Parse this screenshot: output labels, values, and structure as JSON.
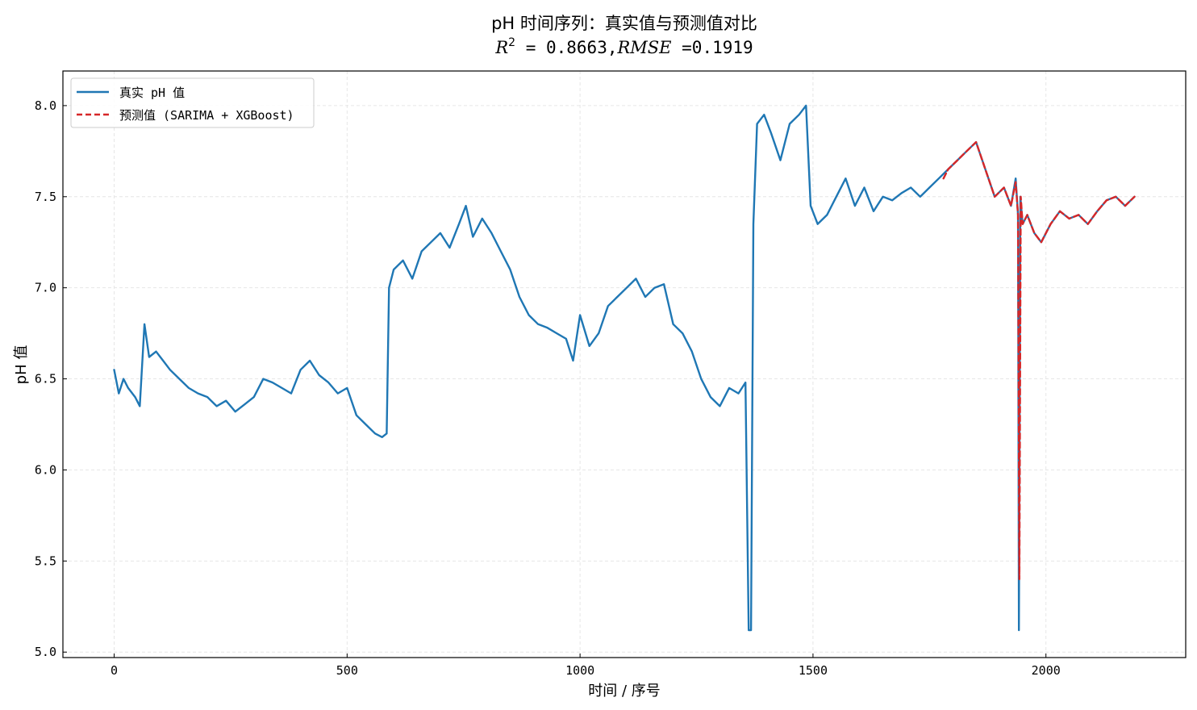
{
  "chart_data": {
    "type": "line",
    "title": "pH 时间序列：真实值与预测值对比",
    "subtitle": "R² = 0.8663,RMSE =0.1919",
    "subtitle_math": {
      "r2_label": "R",
      "r2_exp": "2",
      "r2_value": " = 0.8663,",
      "rmse_label": "RMSE",
      "rmse_value": " =0.1919"
    },
    "xlabel": "时间 / 序号",
    "ylabel": "pH 值",
    "xlim": [
      -110,
      2300
    ],
    "ylim": [
      4.97,
      8.19
    ],
    "xticks": [
      0,
      500,
      1000,
      1500,
      2000
    ],
    "yticks": [
      5.0,
      5.5,
      6.0,
      6.5,
      7.0,
      7.5,
      8.0
    ],
    "ytick_labels": [
      "5.0",
      "5.5",
      "6.0",
      "6.5",
      "7.0",
      "7.5",
      "8.0"
    ],
    "grid": true,
    "legend_position": "top-left",
    "series": [
      {
        "name": "真实 pH 值",
        "color": "#1f77b4",
        "style": "solid",
        "x": [
          0,
          10,
          20,
          30,
          45,
          55,
          65,
          75,
          90,
          105,
          120,
          140,
          160,
          180,
          200,
          220,
          240,
          260,
          280,
          300,
          320,
          340,
          360,
          380,
          400,
          420,
          440,
          460,
          480,
          500,
          520,
          540,
          560,
          575,
          585,
          590,
          600,
          620,
          640,
          660,
          680,
          700,
          720,
          740,
          755,
          770,
          790,
          810,
          830,
          850,
          870,
          890,
          910,
          930,
          950,
          970,
          985,
          1000,
          1020,
          1040,
          1060,
          1080,
          1100,
          1120,
          1140,
          1160,
          1180,
          1200,
          1220,
          1240,
          1260,
          1280,
          1300,
          1320,
          1340,
          1355,
          1362,
          1367,
          1372,
          1380,
          1395,
          1410,
          1430,
          1450,
          1470,
          1485,
          1495,
          1510,
          1530,
          1550,
          1570,
          1590,
          1610,
          1630,
          1650,
          1670,
          1690,
          1710,
          1730,
          1750,
          1770,
          1790,
          1810,
          1830,
          1850,
          1870,
          1890,
          1910,
          1925,
          1935,
          1940,
          1942,
          1945,
          1950,
          1960,
          1975,
          1990,
          2010,
          2030,
          2050,
          2070,
          2090,
          2110,
          2130,
          2150,
          2170,
          2190
        ],
        "y": [
          6.55,
          6.42,
          6.5,
          6.45,
          6.4,
          6.35,
          6.8,
          6.62,
          6.65,
          6.6,
          6.55,
          6.5,
          6.45,
          6.42,
          6.4,
          6.35,
          6.38,
          6.32,
          6.36,
          6.4,
          6.5,
          6.48,
          6.45,
          6.42,
          6.55,
          6.6,
          6.52,
          6.48,
          6.42,
          6.45,
          6.3,
          6.25,
          6.2,
          6.18,
          6.2,
          7.0,
          7.1,
          7.15,
          7.05,
          7.2,
          7.25,
          7.3,
          7.22,
          7.35,
          7.45,
          7.28,
          7.38,
          7.3,
          7.2,
          7.1,
          6.95,
          6.85,
          6.8,
          6.78,
          6.75,
          6.72,
          6.6,
          6.85,
          6.68,
          6.75,
          6.9,
          6.95,
          7.0,
          7.05,
          6.95,
          7.0,
          7.02,
          6.8,
          6.75,
          6.65,
          6.5,
          6.4,
          6.35,
          6.45,
          6.42,
          6.48,
          5.12,
          5.12,
          7.35,
          7.9,
          7.95,
          7.85,
          7.7,
          7.9,
          7.95,
          8.0,
          7.45,
          7.35,
          7.4,
          7.5,
          7.6,
          7.45,
          7.55,
          7.42,
          7.5,
          7.48,
          7.52,
          7.55,
          7.5,
          7.55,
          7.6,
          7.65,
          7.7,
          7.75,
          7.8,
          7.65,
          7.5,
          7.55,
          7.45,
          7.6,
          7.4,
          5.12,
          7.5,
          7.35,
          7.4,
          7.3,
          7.25,
          7.35,
          7.42,
          7.38,
          7.4,
          7.35,
          7.42,
          7.48,
          7.5,
          7.45,
          7.5
        ]
      },
      {
        "name": "预测值 (SARIMA + XGBoost)",
        "color": "#d62728",
        "style": "dashed",
        "x": [
          1780,
          1790,
          1810,
          1830,
          1850,
          1870,
          1890,
          1910,
          1925,
          1935,
          1940,
          1943,
          1946,
          1950,
          1960,
          1975,
          1990,
          2010,
          2030,
          2050,
          2070,
          2090,
          2110,
          2130,
          2150,
          2170,
          2190
        ],
        "y": [
          7.6,
          7.65,
          7.7,
          7.75,
          7.8,
          7.65,
          7.5,
          7.55,
          7.45,
          7.58,
          7.4,
          5.4,
          7.5,
          7.35,
          7.4,
          7.3,
          7.25,
          7.35,
          7.42,
          7.38,
          7.4,
          7.35,
          7.42,
          7.48,
          7.5,
          7.45,
          7.5
        ]
      }
    ]
  }
}
